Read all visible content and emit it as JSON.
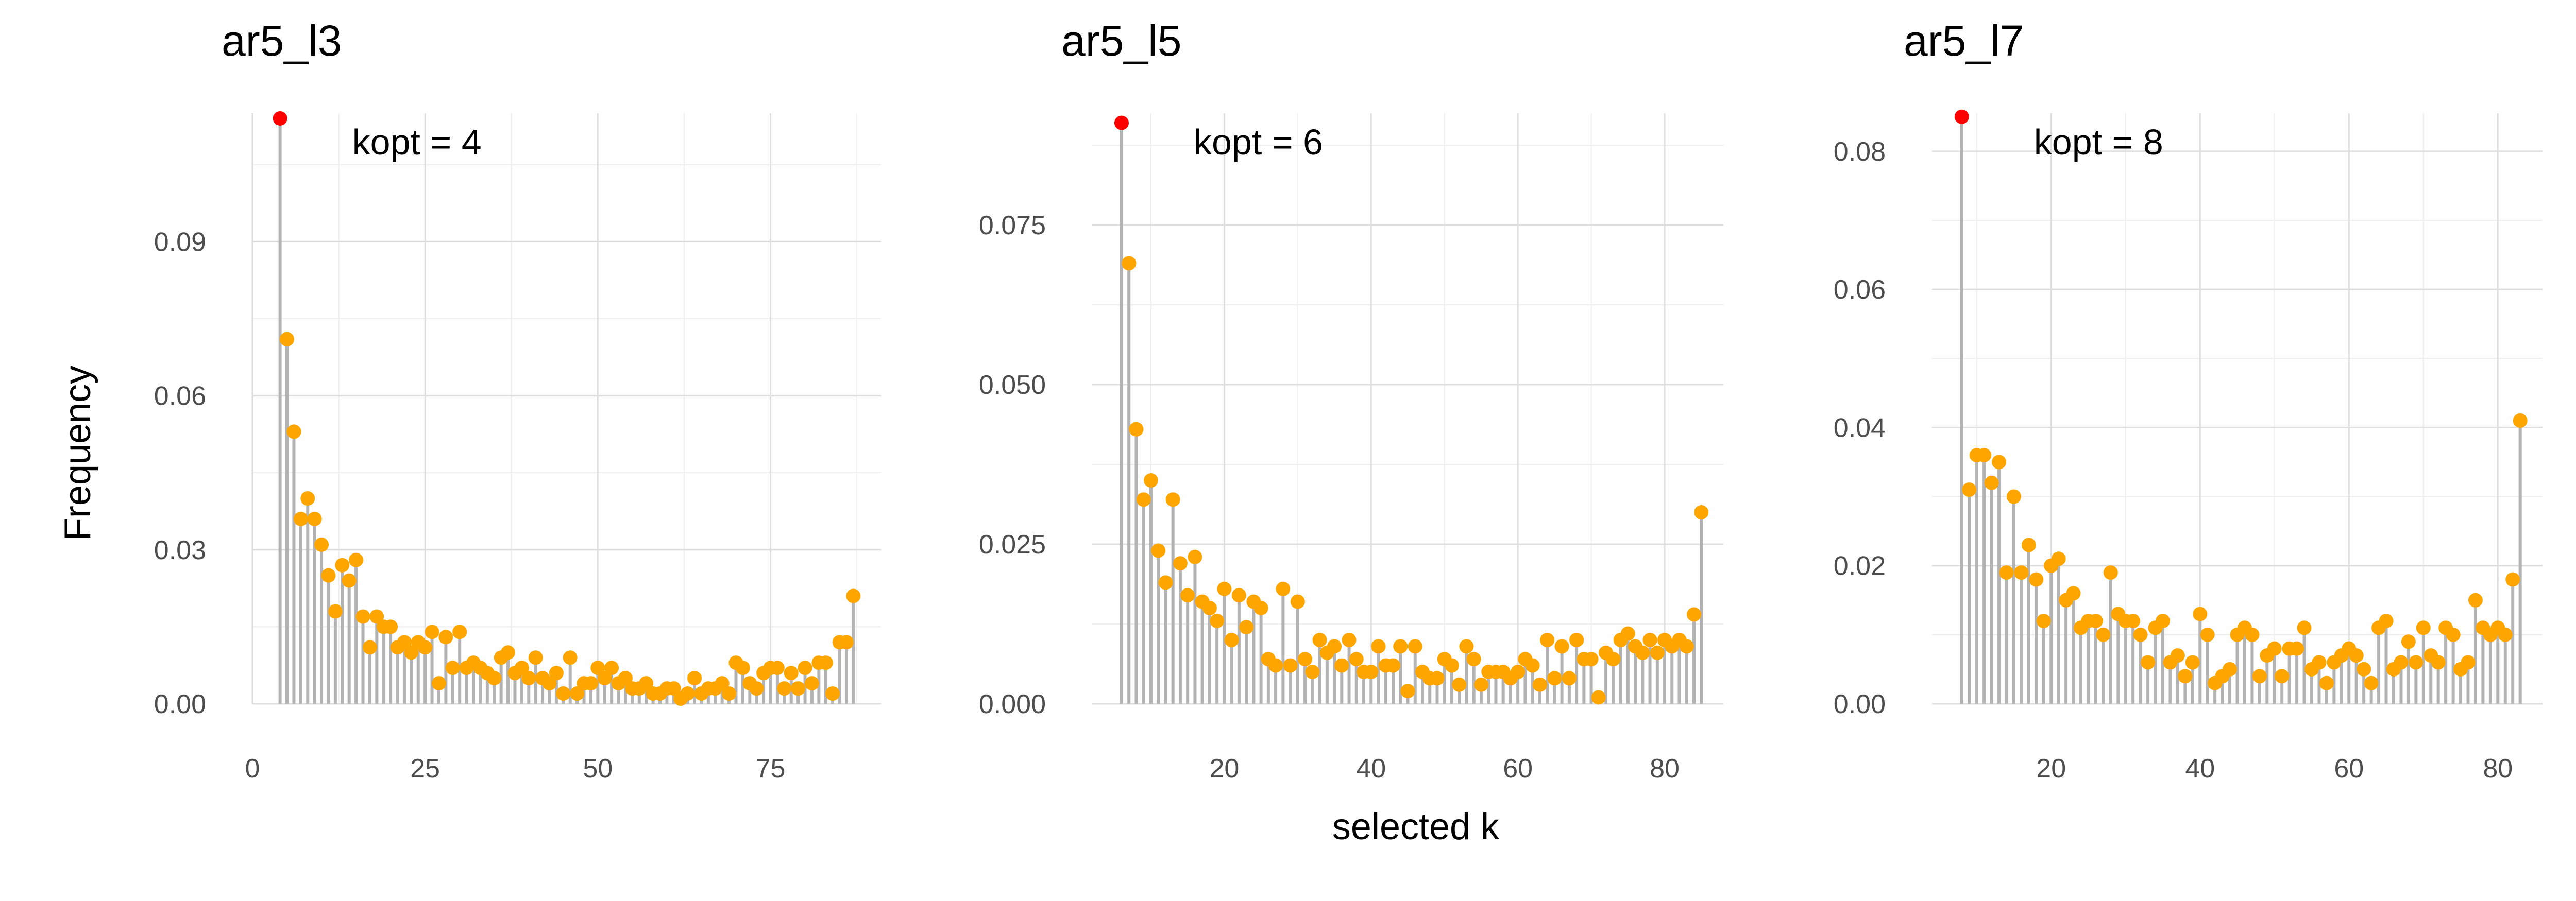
{
  "figure": {
    "xlabel": "selected k",
    "ylabel": "Frequency"
  },
  "colors": {
    "stem": "#b3b3b3",
    "point": "#ffa500",
    "highlight": "#ff0000"
  },
  "chart_data": [
    {
      "type": "lollipop",
      "title": "ar5_l3",
      "annotation": "kopt = 4",
      "xlim": [
        0,
        91
      ],
      "ylim": [
        0,
        0.115
      ],
      "xticks": [
        0,
        25,
        50,
        75
      ],
      "xtick_labels": [
        "0",
        "25",
        "50",
        "75"
      ],
      "yticks": [
        0,
        0.03,
        0.06,
        0.09
      ],
      "ytick_labels": [
        "0.00",
        "0.03",
        "0.06",
        "0.09"
      ],
      "highlight_x": 4,
      "x": [
        4,
        5,
        6,
        7,
        8,
        9,
        10,
        11,
        12,
        13,
        14,
        15,
        16,
        17,
        18,
        19,
        20,
        21,
        22,
        23,
        24,
        25,
        26,
        27,
        28,
        29,
        30,
        31,
        32,
        33,
        34,
        35,
        36,
        37,
        38,
        39,
        40,
        41,
        42,
        43,
        44,
        45,
        46,
        47,
        48,
        49,
        50,
        51,
        52,
        53,
        54,
        55,
        56,
        57,
        58,
        59,
        60,
        61,
        62,
        63,
        64,
        65,
        66,
        67,
        68,
        69,
        70,
        71,
        72,
        73,
        74,
        75,
        76,
        77,
        78,
        79,
        80,
        81,
        82,
        83,
        84,
        85,
        86,
        87
      ],
      "y": [
        0.114,
        0.071,
        0.053,
        0.036,
        0.04,
        0.036,
        0.031,
        0.025,
        0.018,
        0.027,
        0.024,
        0.028,
        0.017,
        0.011,
        0.017,
        0.015,
        0.015,
        0.011,
        0.012,
        0.01,
        0.012,
        0.011,
        0.014,
        0.004,
        0.013,
        0.007,
        0.014,
        0.007,
        0.008,
        0.007,
        0.006,
        0.005,
        0.009,
        0.01,
        0.006,
        0.007,
        0.005,
        0.009,
        0.005,
        0.004,
        0.006,
        0.002,
        0.009,
        0.002,
        0.004,
        0.004,
        0.007,
        0.005,
        0.007,
        0.004,
        0.005,
        0.003,
        0.003,
        0.004,
        0.002,
        0.002,
        0.003,
        0.003,
        0.001,
        0.002,
        0.005,
        0.002,
        0.003,
        0.003,
        0.004,
        0.002,
        0.008,
        0.007,
        0.004,
        0.003,
        0.006,
        0.007,
        0.007,
        0.003,
        0.006,
        0.003,
        0.007,
        0.004,
        0.008,
        0.008,
        0.002,
        0.012,
        0.012,
        0.021
      ]
    },
    {
      "type": "lollipop",
      "title": "ar5_l5",
      "annotation": "kopt = 6",
      "xlim": [
        2,
        88
      ],
      "ylim": [
        0,
        0.0925
      ],
      "xticks": [
        20,
        40,
        60,
        80
      ],
      "xtick_labels": [
        "20",
        "40",
        "60",
        "80"
      ],
      "yticks": [
        0,
        0.025,
        0.05,
        0.075
      ],
      "ytick_labels": [
        "0.000",
        "0.025",
        "0.050",
        "0.075"
      ],
      "highlight_x": 6,
      "x": [
        6,
        7,
        8,
        9,
        10,
        11,
        12,
        13,
        14,
        15,
        16,
        17,
        18,
        19,
        20,
        21,
        22,
        23,
        24,
        25,
        26,
        27,
        28,
        29,
        30,
        31,
        32,
        33,
        34,
        35,
        36,
        37,
        38,
        39,
        40,
        41,
        42,
        43,
        44,
        45,
        46,
        47,
        48,
        49,
        50,
        51,
        52,
        53,
        54,
        55,
        56,
        57,
        58,
        59,
        60,
        61,
        62,
        63,
        64,
        65,
        66,
        67,
        68,
        69,
        70,
        71,
        72,
        73,
        74,
        75,
        76,
        77,
        78,
        79,
        80,
        81,
        82,
        83,
        84,
        85
      ],
      "y": [
        0.091,
        0.069,
        0.043,
        0.032,
        0.035,
        0.024,
        0.019,
        0.032,
        0.022,
        0.017,
        0.023,
        0.016,
        0.015,
        0.013,
        0.018,
        0.01,
        0.017,
        0.012,
        0.016,
        0.015,
        0.007,
        0.006,
        0.018,
        0.006,
        0.016,
        0.007,
        0.005,
        0.01,
        0.008,
        0.009,
        0.006,
        0.01,
        0.007,
        0.005,
        0.005,
        0.009,
        0.006,
        0.006,
        0.009,
        0.002,
        0.009,
        0.005,
        0.004,
        0.004,
        0.007,
        0.006,
        0.003,
        0.009,
        0.007,
        0.003,
        0.005,
        0.005,
        0.005,
        0.004,
        0.005,
        0.007,
        0.006,
        0.003,
        0.01,
        0.004,
        0.009,
        0.004,
        0.01,
        0.007,
        0.007,
        0.001,
        0.008,
        0.007,
        0.01,
        0.011,
        0.009,
        0.008,
        0.01,
        0.008,
        0.01,
        0.009,
        0.01,
        0.009,
        0.014,
        0.03
      ]
    },
    {
      "type": "lollipop",
      "title": "ar5_l7",
      "annotation": "kopt = 8",
      "xlim": [
        4,
        86
      ],
      "ylim": [
        0,
        0.0855
      ],
      "xticks": [
        20,
        40,
        60,
        80
      ],
      "xtick_labels": [
        "20",
        "40",
        "60",
        "80"
      ],
      "yticks": [
        0,
        0.02,
        0.04,
        0.06,
        0.08
      ],
      "ytick_labels": [
        "0.00",
        "0.02",
        "0.04",
        "0.06",
        "0.08"
      ],
      "highlight_x": 8,
      "x": [
        8,
        9,
        10,
        11,
        12,
        13,
        14,
        15,
        16,
        17,
        18,
        19,
        20,
        21,
        22,
        23,
        24,
        25,
        26,
        27,
        28,
        29,
        30,
        31,
        32,
        33,
        34,
        35,
        36,
        37,
        38,
        39,
        40,
        41,
        42,
        43,
        44,
        45,
        46,
        47,
        48,
        49,
        50,
        51,
        52,
        53,
        54,
        55,
        56,
        57,
        58,
        59,
        60,
        61,
        62,
        63,
        64,
        65,
        66,
        67,
        68,
        69,
        70,
        71,
        72,
        73,
        74,
        75,
        76,
        77,
        78,
        79,
        80,
        81,
        82,
        83
      ],
      "y": [
        0.085,
        0.031,
        0.036,
        0.036,
        0.032,
        0.035,
        0.019,
        0.03,
        0.019,
        0.023,
        0.018,
        0.012,
        0.02,
        0.021,
        0.015,
        0.016,
        0.011,
        0.012,
        0.012,
        0.01,
        0.019,
        0.013,
        0.012,
        0.012,
        0.01,
        0.006,
        0.011,
        0.012,
        0.006,
        0.007,
        0.004,
        0.006,
        0.013,
        0.01,
        0.003,
        0.004,
        0.005,
        0.01,
        0.011,
        0.01,
        0.004,
        0.007,
        0.008,
        0.004,
        0.008,
        0.008,
        0.011,
        0.005,
        0.006,
        0.003,
        0.006,
        0.007,
        0.008,
        0.007,
        0.005,
        0.003,
        0.011,
        0.012,
        0.005,
        0.006,
        0.009,
        0.006,
        0.011,
        0.007,
        0.006,
        0.011,
        0.01,
        0.005,
        0.006,
        0.015,
        0.011,
        0.01,
        0.011,
        0.01,
        0.018,
        0.041
      ]
    }
  ]
}
